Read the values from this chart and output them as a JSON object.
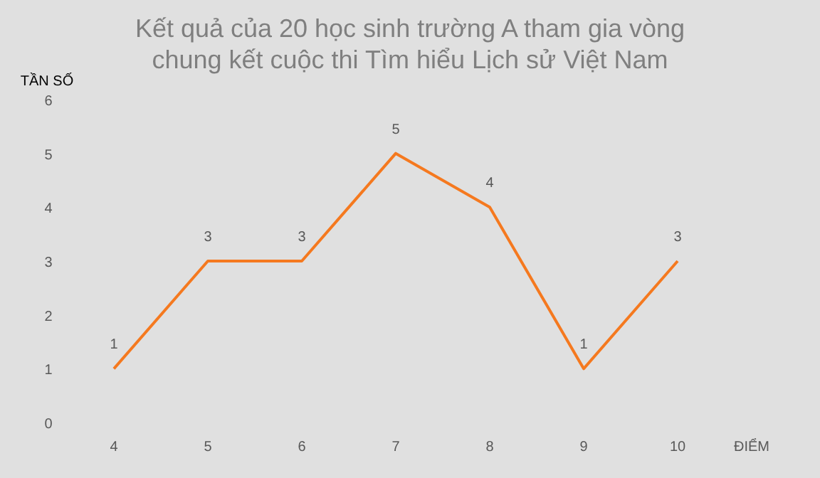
{
  "chart_data": {
    "type": "line",
    "title": "Kết quả của 20 học sinh trường A tham gia vòng chung kết cuộc thi Tìm hiểu Lịch sử Việt Nam",
    "xlabel": "ĐIỂM",
    "ylabel": "TẦN SỐ",
    "categories": [
      "4",
      "5",
      "6",
      "7",
      "8",
      "9",
      "10"
    ],
    "series": [
      {
        "color": "#f5791f",
        "values": [
          1,
          3,
          3,
          5,
          4,
          1,
          3
        ]
      }
    ],
    "ylim": [
      0,
      6
    ],
    "yticks": [
      0,
      1,
      2,
      3,
      4,
      5,
      6
    ],
    "grid": false,
    "data_labels": true,
    "marker": "none",
    "line_style": "solid"
  }
}
